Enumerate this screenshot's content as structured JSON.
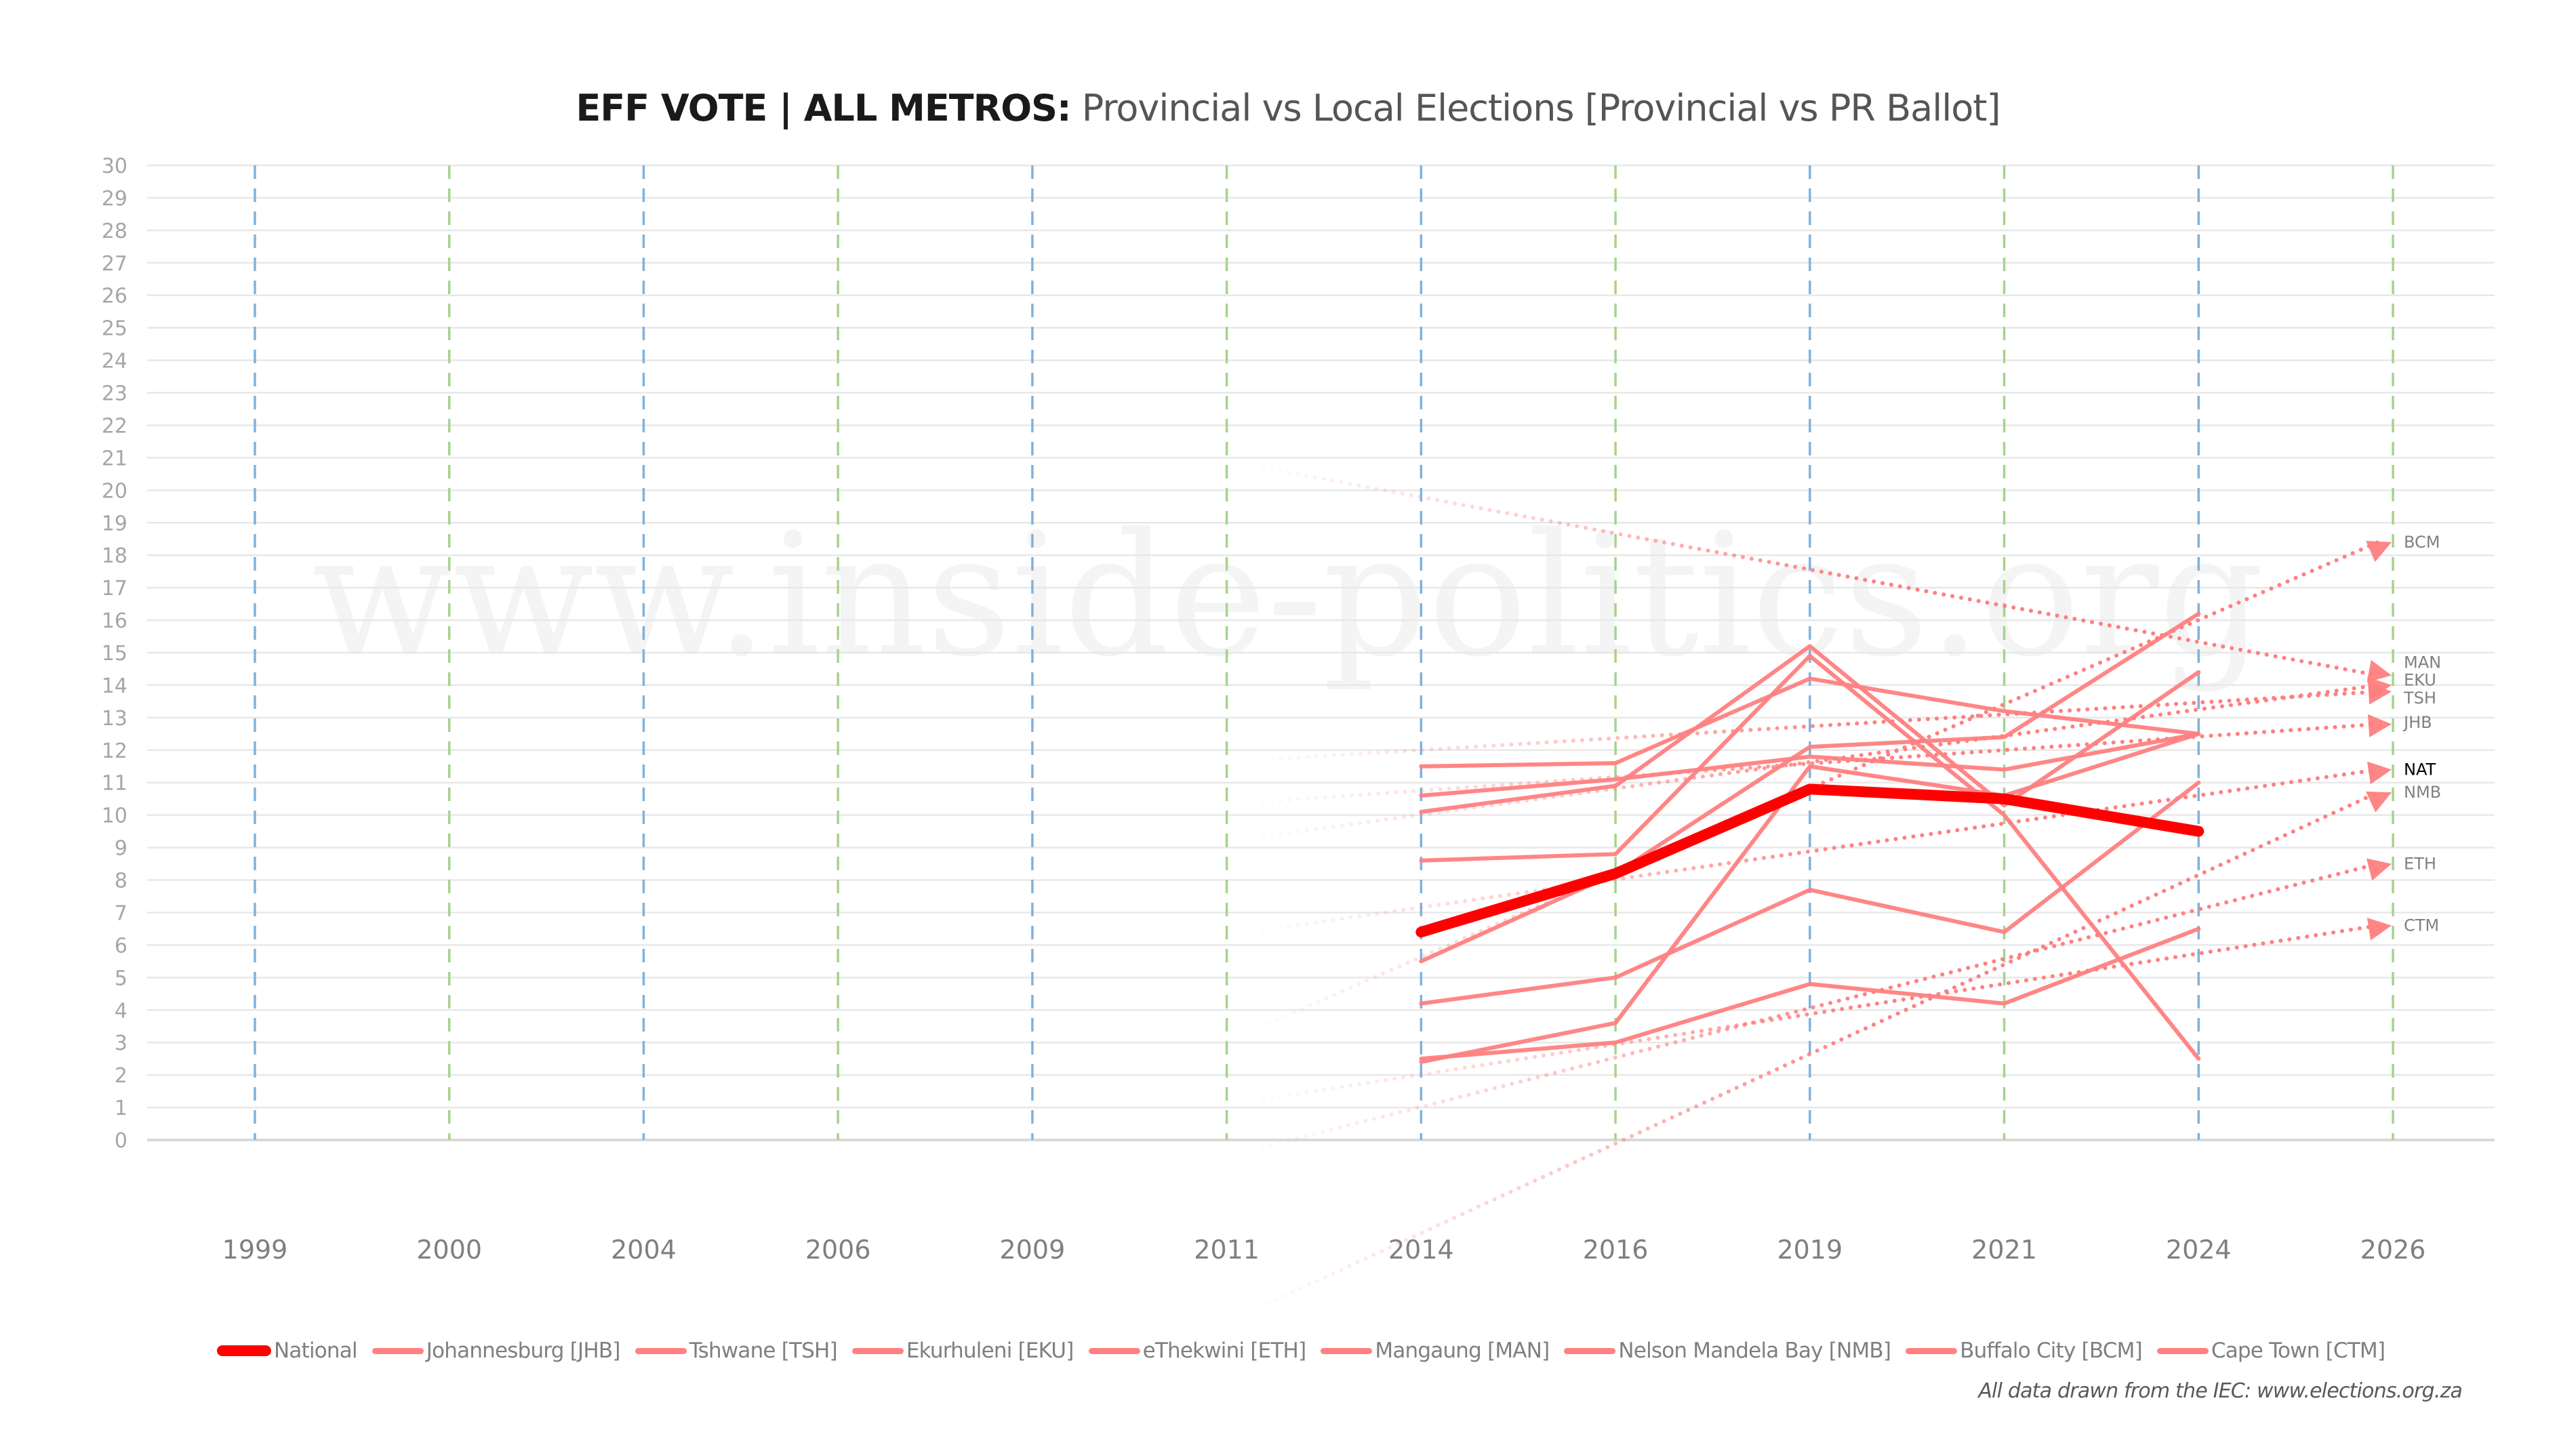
{
  "title": {
    "bold": "EFF VOTE | ALL METROS:",
    "regular": "Provincial vs Local Elections [Provincial vs PR Ballot]"
  },
  "watermark": "www.inside-politics.org",
  "source_note": "All data drawn from the IEC: www.elections.org.za",
  "colors": {
    "national": "#ff0000",
    "metro": "#ff8080",
    "grid": "#e8e8e8",
    "provincial_divider": "#7fb2dd",
    "local_divider": "#a6d38e"
  },
  "chart_data": {
    "type": "line",
    "title": "EFF VOTE | ALL METROS: Provincial vs Local Elections [Provincial vs PR Ballot]",
    "xlabel": "",
    "ylabel": "",
    "categories": [
      "1999",
      "2000",
      "2004",
      "2006",
      "2009",
      "2011",
      "2014",
      "2016",
      "2019",
      "2021",
      "2024",
      "2026"
    ],
    "election_type": [
      "provincial",
      "local",
      "provincial",
      "local",
      "provincial",
      "local",
      "provincial",
      "local",
      "provincial",
      "local",
      "provincial",
      "local"
    ],
    "yticks": [
      "0",
      "1",
      "2",
      "3",
      "4",
      "5",
      "6",
      "7",
      "8",
      "9",
      "10",
      "11",
      "12",
      "13",
      "14",
      "15",
      "16",
      "17",
      "18",
      "19",
      "20",
      "21",
      "22",
      "23",
      "24",
      "25",
      "26",
      "27",
      "28",
      "29",
      "30"
    ],
    "ylim": [
      0,
      30
    ],
    "grid": true,
    "legend_position": "bottom",
    "series": [
      {
        "name": "National",
        "code": "NAT",
        "values": [
          null,
          null,
          null,
          null,
          null,
          null,
          6.4,
          8.2,
          10.8,
          10.5,
          9.5,
          null
        ],
        "trend_2026": 11.4
      },
      {
        "name": "Johannesburg [JHB]",
        "code": "JHB",
        "values": [
          null,
          null,
          null,
          null,
          null,
          null,
          10.6,
          11.1,
          11.8,
          11.4,
          12.5,
          null
        ],
        "trend_2026": 12.8
      },
      {
        "name": "Tshwane [TSH]",
        "code": "TSH",
        "values": [
          null,
          null,
          null,
          null,
          null,
          null,
          11.5,
          11.6,
          14.2,
          13.2,
          12.5,
          null
        ],
        "trend_2026": 13.8
      },
      {
        "name": "Ekurhuleni [EKU]",
        "code": "EKU",
        "values": [
          null,
          null,
          null,
          null,
          null,
          null,
          10.1,
          10.9,
          15.2,
          10.3,
          14.4,
          null
        ],
        "trend_2026": 14.0
      },
      {
        "name": "eThekwini [ETH]",
        "code": "ETH",
        "values": [
          null,
          null,
          null,
          null,
          null,
          null,
          4.2,
          5.0,
          7.7,
          6.4,
          11.0,
          null
        ],
        "trend_2026": 8.5
      },
      {
        "name": "Mangaung [MAN]",
        "code": "MAN",
        "values": [
          null,
          null,
          null,
          null,
          null,
          null,
          8.6,
          8.8,
          14.9,
          10.0,
          2.5,
          null
        ],
        "trend_2026": 14.3
      },
      {
        "name": "Nelson Mandela Bay [NMB]",
        "code": "NMB",
        "values": [
          null,
          null,
          null,
          null,
          null,
          null,
          2.4,
          3.6,
          11.5,
          10.6,
          12.5,
          null
        ],
        "trend_2026": 10.7
      },
      {
        "name": "Buffalo City [BCM]",
        "code": "BCM",
        "values": [
          null,
          null,
          null,
          null,
          null,
          null,
          5.5,
          8.2,
          12.1,
          12.4,
          16.2,
          null
        ],
        "trend_2026": 18.4
      },
      {
        "name": "Cape Town [CTM]",
        "code": "CTM",
        "values": [
          null,
          null,
          null,
          null,
          null,
          null,
          2.5,
          3.0,
          4.8,
          4.2,
          6.5,
          null
        ],
        "trend_2026": 6.6
      }
    ],
    "end_labels": [
      "BCM",
      "MAN",
      "EKU",
      "TSH",
      "JHB",
      "NAT",
      "NMB",
      "ETH",
      "CTM"
    ]
  }
}
